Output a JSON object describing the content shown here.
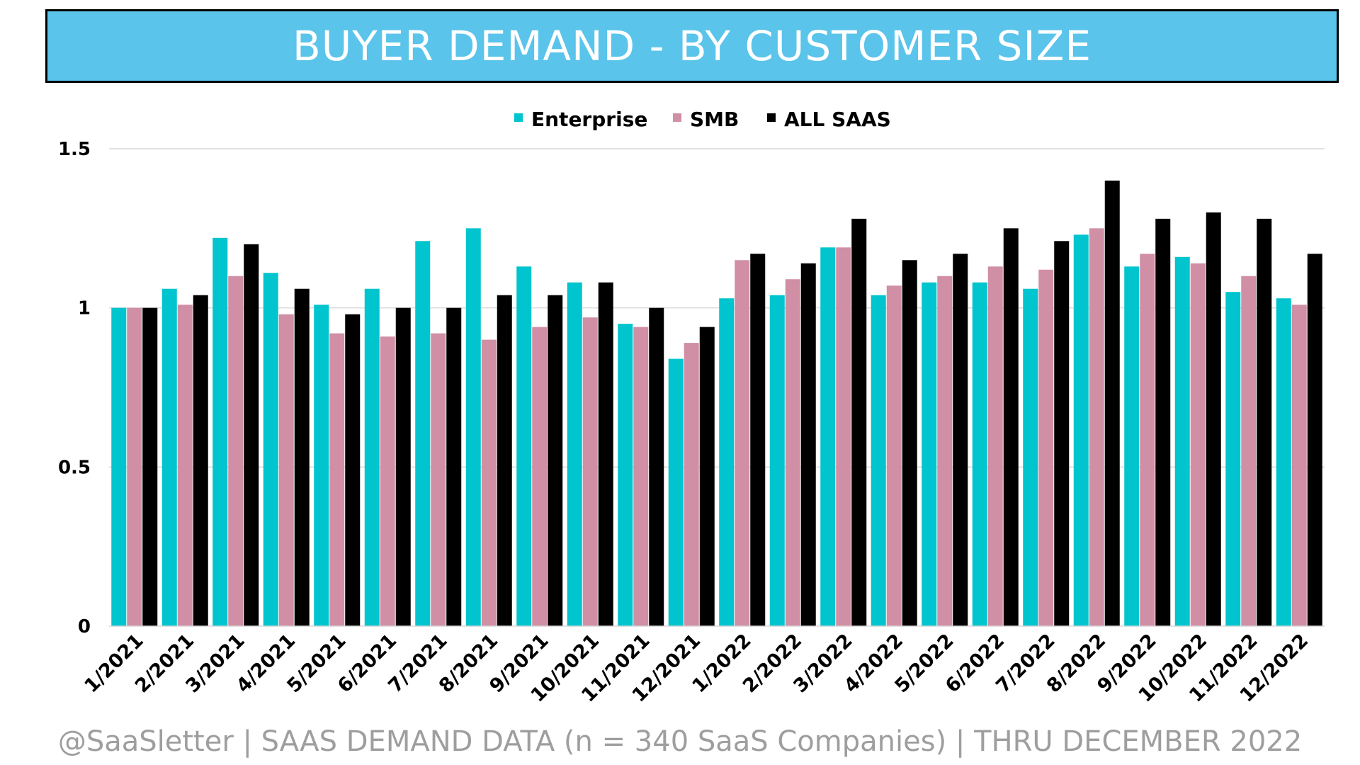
{
  "title": "BUYER DEMAND - BY CUSTOMER SIZE",
  "footer": "@SaaSletter | SAAS DEMAND DATA (n = 340 SaaS Companies) | THRU DECEMBER 2022",
  "chart_data": {
    "type": "bar",
    "categories": [
      "1/2021",
      "2/2021",
      "3/2021",
      "4/2021",
      "5/2021",
      "6/2021",
      "7/2021",
      "8/2021",
      "9/2021",
      "10/2021",
      "11/2021",
      "12/2021",
      "1/2022",
      "2/2022",
      "3/2022",
      "4/2022",
      "5/2022",
      "6/2022",
      "7/2022",
      "8/2022",
      "9/2022",
      "10/2022",
      "11/2022",
      "12/2022"
    ],
    "series": [
      {
        "name": "Enterprise",
        "color": "#00c4ce",
        "values": [
          1.0,
          1.06,
          1.22,
          1.11,
          1.01,
          1.06,
          1.21,
          1.25,
          1.13,
          1.08,
          0.95,
          0.84,
          1.03,
          1.04,
          1.19,
          1.04,
          1.08,
          1.08,
          1.06,
          1.23,
          1.13,
          1.16,
          1.05,
          1.03
        ]
      },
      {
        "name": "SMB",
        "color": "#d08fa5",
        "values": [
          1.0,
          1.01,
          1.1,
          0.98,
          0.92,
          0.91,
          0.92,
          0.9,
          0.94,
          0.97,
          0.94,
          0.89,
          1.15,
          1.09,
          1.19,
          1.07,
          1.1,
          1.13,
          1.12,
          1.25,
          1.17,
          1.14,
          1.1,
          1.01
        ]
      },
      {
        "name": "ALL SAAS",
        "color": "#000000",
        "values": [
          1.0,
          1.04,
          1.2,
          1.06,
          0.98,
          1.0,
          1.0,
          1.04,
          1.04,
          1.08,
          1.0,
          0.94,
          1.17,
          1.14,
          1.28,
          1.15,
          1.17,
          1.25,
          1.21,
          1.4,
          1.28,
          1.3,
          1.28,
          1.17
        ]
      }
    ],
    "y_ticks": [
      "0",
      "0.5",
      "1",
      "1.5"
    ],
    "ylim": [
      0,
      1.5
    ],
    "grid": true,
    "legend_position": "top-center"
  }
}
